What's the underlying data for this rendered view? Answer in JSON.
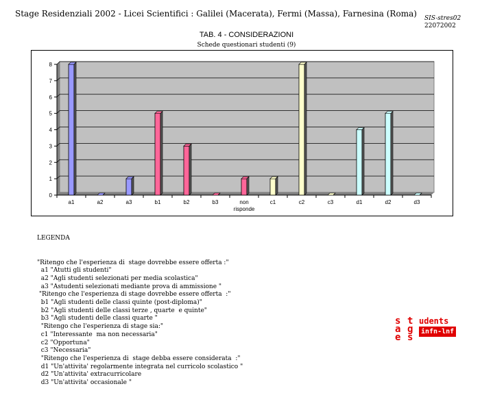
{
  "header": {
    "title": "Stage Residenziali  2002 - Licei Scientifici : Galilei  (Macerata), Fermi  (Massa), Farnesina (Roma)",
    "doc_id": "SIS-stres02",
    "doc_date": "22072002"
  },
  "chart_data": {
    "type": "bar",
    "title": "TAB. 4 - CONSIDERAZIONI",
    "subtitle": "Schede questionari studenti  (9)",
    "xlabel": "",
    "ylabel": "",
    "ylim": [
      0,
      8
    ],
    "yticks": [
      "0",
      "1",
      "2",
      "3",
      "4",
      "5",
      "6",
      "7",
      "8"
    ],
    "grid": true,
    "categories": [
      "a1",
      "a2",
      "a3",
      "b1",
      "b2",
      "b3",
      "non risponde",
      "c1",
      "c2",
      "c3",
      "d1",
      "d2",
      "d3"
    ],
    "category_lines": [
      [
        "a1"
      ],
      [
        "a2"
      ],
      [
        "a3"
      ],
      [
        "b1"
      ],
      [
        "b2"
      ],
      [
        "b3"
      ],
      [
        "non",
        "risponde"
      ],
      [
        "c1"
      ],
      [
        "c2"
      ],
      [
        "c3"
      ],
      [
        "d1"
      ],
      [
        "d2"
      ],
      [
        "d3"
      ]
    ],
    "values": [
      8,
      0,
      1,
      5,
      3,
      0,
      1,
      1,
      8,
      0,
      4,
      5,
      0
    ],
    "category_series": [
      "a",
      "a",
      "a",
      "b",
      "b",
      "b",
      "b",
      "c",
      "c",
      "c",
      "d",
      "d",
      "d"
    ],
    "legend": {
      "placement": "right",
      "entries": [
        {
          "name": "a",
          "color": "#9999ff"
        },
        {
          "name": "b",
          "color": "#ff6699"
        },
        {
          "name": "c",
          "color": "#ffffcc"
        },
        {
          "name": "d",
          "color": "#ccffff"
        }
      ]
    },
    "plot_background": "#c0c0c0"
  },
  "legend_text": {
    "heading": "LEGENDA",
    "lines": [
      "\"Ritengo che l'esperienza di  stage dovrebbe essere offerta :\"",
      "  a1 \"Atutti gli studenti\"",
      "  a2 \"Agli studenti selezionati per media scolastica\"",
      "  a3 \"Astudenti selezionati mediante prova di ammissione \"",
      " \"Ritengo che l'esperienza di stage dovrebbe essere offerta  :\"",
      "  b1 \"Agli studenti delle classi quinte (post-diploma)\"",
      "  b2 \"Agli studenti delle classi terze , quarte  e quinte\"",
      "  b3 \"Agli studenti delle classi quarte \"",
      "  \"Ritengo che l'esperienza di stage sia:\"",
      "  c1 \"Interessante  ma non necessaria\"",
      "  c2 \"Opportuna\"",
      "  c3 \"Necessaria\"",
      "  \"Ritengo che l'esperienza di  stage debba essere considerata  :\"",
      "  d1 \"Un'attivita' regolarmente integrata nel curricolo scolastico \"",
      "  d2 \"Un'attivita' extracurricolare",
      "  d3 \"Un'attivita' occasionale \""
    ]
  },
  "logo": {
    "letters_left": [
      "s",
      "a",
      "e"
    ],
    "letters_mid": [
      "t",
      "g",
      "s"
    ],
    "word": "udents",
    "badge": "infn-lnf"
  }
}
